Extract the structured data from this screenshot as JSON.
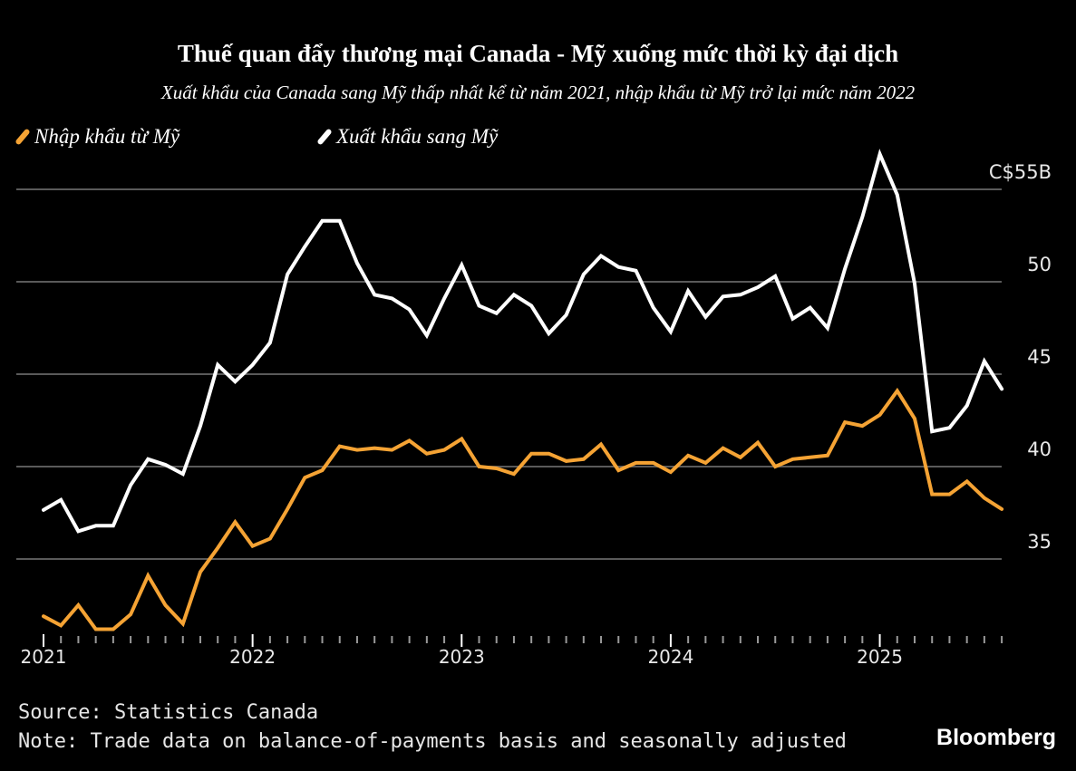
{
  "chart_data": {
    "type": "line",
    "title": "Thuế quan đẩy thương mại Canada - Mỹ xuống mức thời kỳ đại dịch",
    "subtitle": "Xuất khẩu của Canada sang Mỹ thấp nhất kể từ năm 2021, nhập khẩu từ Mỹ trở lại mức năm 2022",
    "x_start": "2021-01",
    "x_frequency": "monthly",
    "x_tick_labels": [
      "2021",
      "2022",
      "2023",
      "2024",
      "2025"
    ],
    "y_tick_labels": [
      "C$55B",
      "50",
      "45",
      "40",
      "35"
    ],
    "y_ticks": [
      55,
      50,
      45,
      40,
      35
    ],
    "ylim": [
      30.5,
      57.5
    ],
    "unit": "C$ billions",
    "grid": true,
    "legend_placement": "top-left",
    "series": [
      {
        "name": "Nhập khẩu từ Mỹ",
        "color": "#f5a334",
        "values": [
          31.9,
          31.4,
          32.5,
          31.2,
          31.2,
          32.0,
          34.1,
          32.5,
          31.5,
          34.3,
          35.6,
          37.0,
          35.7,
          36.1,
          37.7,
          39.4,
          39.8,
          41.1,
          40.9,
          41.0,
          40.9,
          41.4,
          40.7,
          40.9,
          41.5,
          40.0,
          39.9,
          39.6,
          40.7,
          40.7,
          40.3,
          40.4,
          41.2,
          39.8,
          40.2,
          40.2,
          39.7,
          40.6,
          40.2,
          41.0,
          40.5,
          41.3,
          40.0,
          40.4,
          40.5,
          40.6,
          42.4,
          42.2,
          42.8,
          44.1,
          42.6,
          38.5,
          38.5,
          39.2,
          38.3,
          37.7
        ]
      },
      {
        "name": "Xuất khẩu sang Mỹ",
        "color": "#ffffff",
        "values": [
          37.65,
          38.2,
          36.5,
          36.8,
          36.8,
          39.0,
          40.4,
          40.1,
          39.6,
          42.2,
          45.5,
          44.6,
          45.5,
          46.7,
          50.4,
          51.9,
          53.3,
          53.3,
          51.0,
          49.3,
          49.1,
          48.5,
          47.1,
          49.1,
          50.9,
          48.7,
          48.3,
          49.3,
          48.7,
          47.2,
          48.2,
          50.4,
          51.4,
          50.8,
          50.6,
          48.6,
          47.3,
          49.5,
          48.1,
          49.2,
          49.3,
          49.7,
          50.3,
          48.0,
          48.6,
          47.5,
          50.7,
          53.5,
          56.9,
          54.7,
          49.9,
          41.9,
          42.1,
          43.3,
          45.7,
          44.2
        ]
      }
    ]
  },
  "footer": {
    "source": "Source: Statistics Canada",
    "note": "Note: Trade data on balance-of-payments basis and seasonally adjusted",
    "brand": "Bloomberg"
  }
}
